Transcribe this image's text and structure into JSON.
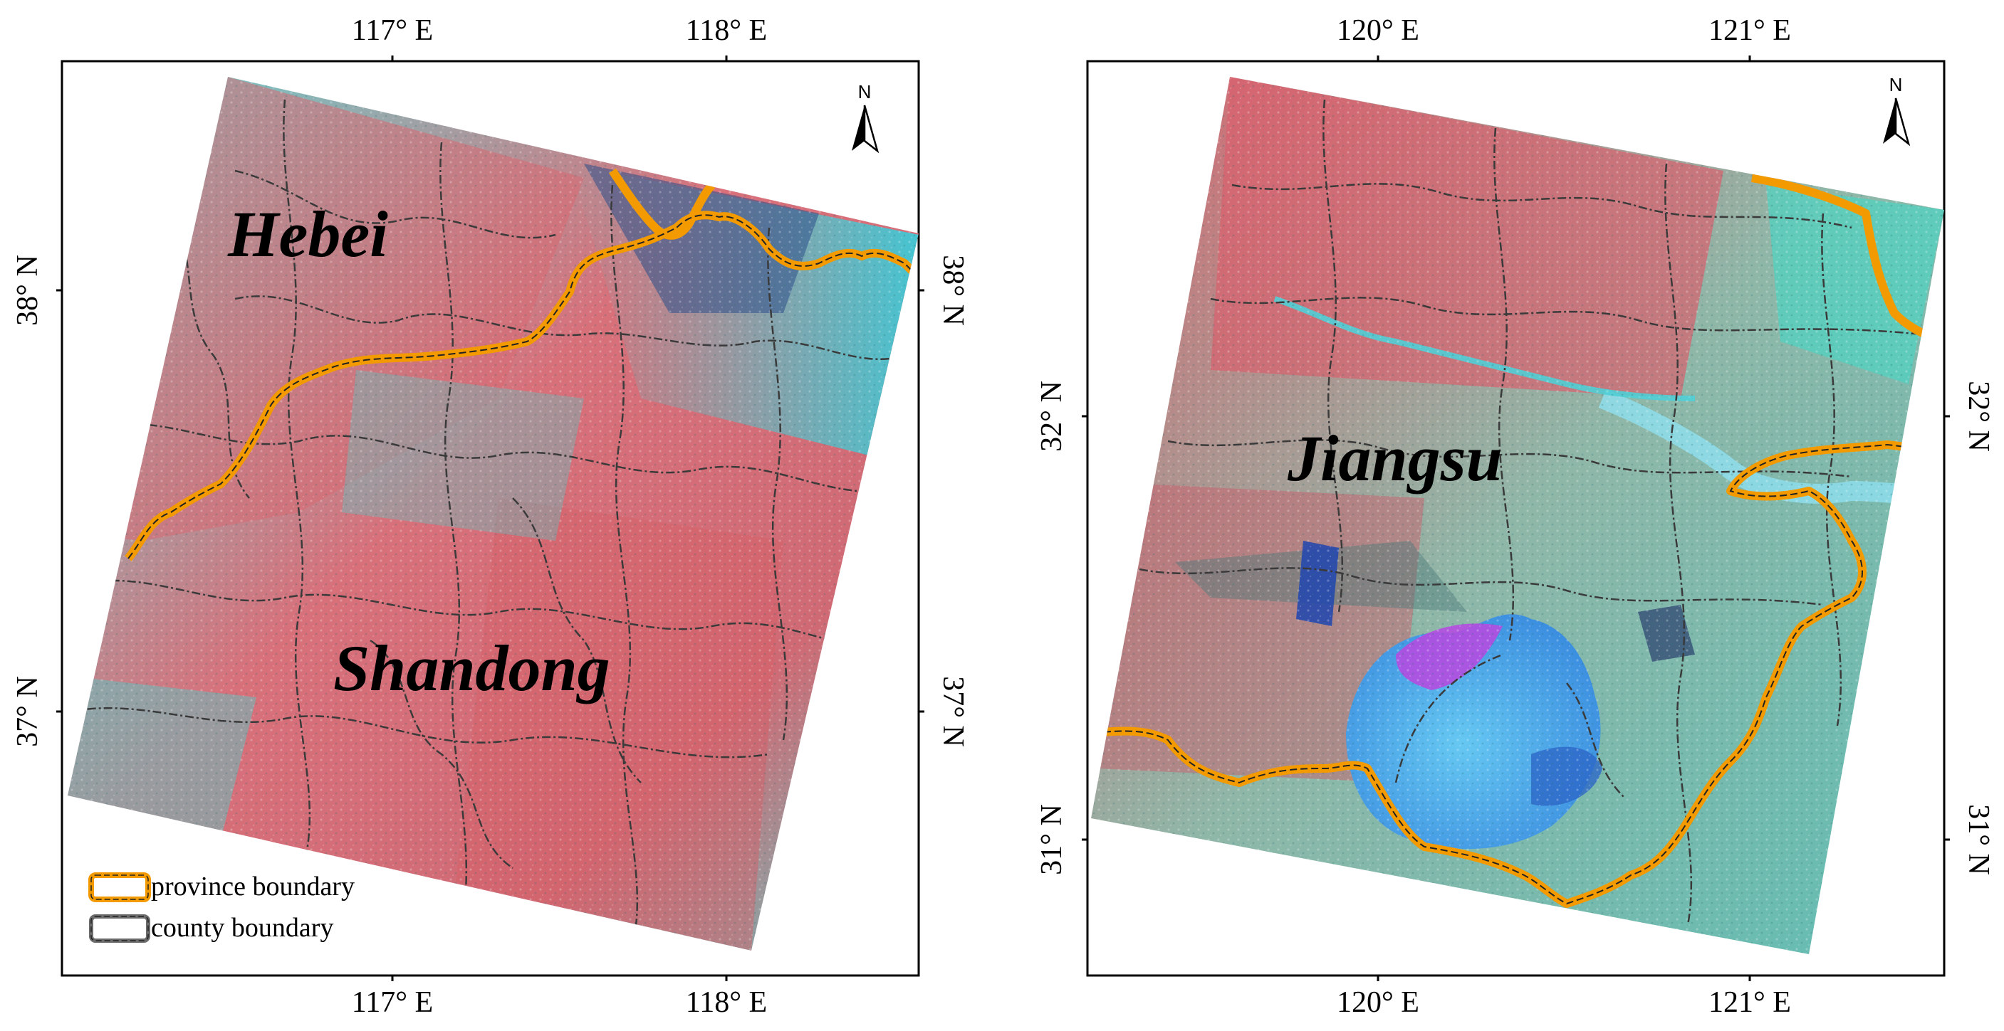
{
  "left_map": {
    "top_ticks": [
      "117° E",
      "118° E"
    ],
    "bottom_ticks": [
      "117° E",
      "118° E"
    ],
    "left_ticks": [
      "38° N",
      "37° N"
    ],
    "right_ticks": [
      "38° N",
      "37° N"
    ],
    "regions": [
      "Hebei",
      "Shandong"
    ],
    "north": "N"
  },
  "right_map": {
    "top_ticks": [
      "120° E",
      "121° E"
    ],
    "bottom_ticks": [
      "120° E",
      "121° E"
    ],
    "left_ticks": [
      "32° N",
      "31° N"
    ],
    "right_ticks": [
      "32° N",
      "31° N"
    ],
    "regions": [
      "Jiangsu"
    ],
    "north": "N"
  },
  "legend": {
    "province": "province boundary",
    "county": "county boundary"
  },
  "colors": {
    "province_boundary": "#f29a00",
    "county_boundary": "#3a3a3a",
    "cropland": "#d9646e",
    "water_vegetation": "#57d8d8",
    "lake": "#4fa8e8"
  }
}
